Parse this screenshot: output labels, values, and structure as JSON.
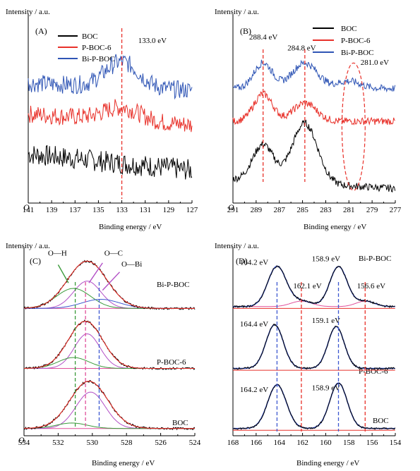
{
  "colors": {
    "black": "#000000",
    "red": "#e8312a",
    "blue": "#2f55b5",
    "green": "#3a9a3a",
    "purple": "#b24fc6",
    "baseblue": "#3d58d0",
    "pink": "#e0509a",
    "fitred": "#e8312a"
  },
  "chart_data": [
    {
      "id": "A",
      "type": "line",
      "panel_label": "(A)",
      "ylabel": "Intensity / a.u.",
      "xlabel": "Binding energy / eV",
      "xlim": [
        141,
        127
      ],
      "x_ticks": [
        "141",
        "139",
        "137",
        "135",
        "133",
        "131",
        "129",
        "127"
      ],
      "y_origin_label": "O",
      "series": [
        {
          "name": "BOC",
          "color": "black",
          "offset": 0.18,
          "amp": 0.0,
          "center": 133.0,
          "width": 1.6,
          "slope": 0.09,
          "noise": 0.06
        },
        {
          "name": "P-BOC-6",
          "color": "red",
          "offset": 0.43,
          "amp": 0.07,
          "center": 133.0,
          "width": 1.5,
          "slope": 0.06,
          "noise": 0.05
        },
        {
          "name": "Bi-P-BOC",
          "color": "blue",
          "offset": 0.62,
          "amp": 0.14,
          "center": 133.0,
          "width": 1.4,
          "slope": 0.04,
          "noise": 0.05
        }
      ],
      "ref_lines": [
        133.0
      ],
      "annotations": [
        {
          "text": "133.0 eV",
          "x": 131.6,
          "y": 0.88
        }
      ]
    },
    {
      "id": "B",
      "type": "line",
      "panel_label": "(B)",
      "ylabel": "Intensity / a.u.",
      "xlabel": "Binding energy / eV",
      "xlim": [
        291,
        277
      ],
      "x_ticks": [
        "291",
        "289",
        "287",
        "285",
        "283",
        "281",
        "279",
        "277"
      ],
      "y_origin_label": "O",
      "series": [
        {
          "name": "BOC",
          "color": "black",
          "offset": 0.08,
          "peaks": [
            [
              288.4,
              0.2,
              0.9
            ],
            [
              284.8,
              0.33,
              1.1
            ]
          ],
          "tail": 0.05,
          "noise": 0.02
        },
        {
          "name": "P-BOC-6",
          "color": "red",
          "offset": 0.45,
          "peaks": [
            [
              288.4,
              0.15,
              0.8
            ],
            [
              284.8,
              0.1,
              1.0
            ]
          ],
          "tail": 0.0,
          "noise": 0.02
        },
        {
          "name": "Bi-P-BOC",
          "color": "blue",
          "offset": 0.63,
          "peaks": [
            [
              288.4,
              0.14,
              0.8
            ],
            [
              284.8,
              0.14,
              1.1
            ],
            [
              281.0,
              0.04,
              1.0
            ]
          ],
          "tail": 0.0,
          "noise": 0.02
        }
      ],
      "ref_lines": [
        288.4,
        284.8
      ],
      "annotations": [
        {
          "text": "288.4 eV",
          "x": 289.6,
          "y": 0.9
        },
        {
          "text": "284.8 eV",
          "x": 286.3,
          "y": 0.84
        },
        {
          "text": "281.0 eV",
          "x": 280.0,
          "y": 0.76
        }
      ],
      "ellipse": {
        "cx": 280.6,
        "cy": 0.42,
        "rx": 1.0,
        "ry": 0.35
      }
    },
    {
      "id": "C",
      "type": "line",
      "panel_label": "(C)",
      "ylabel": "Intensity / a.u.",
      "xlabel": "Binding energy / eV",
      "xlim": [
        534,
        524
      ],
      "x_ticks": [
        "534",
        "532",
        "530",
        "528",
        "526",
        "524"
      ],
      "y_origin_label": "O",
      "stacks": [
        {
          "name": "Bi-P-BOC",
          "base": 0.7,
          "total": 0.26,
          "center": 530.3,
          "width": 1.15,
          "components": [
            [
              530.3,
              0.15,
              0.8,
              "purple"
            ],
            [
              531.1,
              0.11,
              1.0,
              "green"
            ],
            [
              529.5,
              0.05,
              1.1,
              "baseblue"
            ]
          ]
        },
        {
          "name": "P-BOC-6",
          "base": 0.37,
          "total": 0.26,
          "center": 530.4,
          "width": 1.0,
          "components": [
            [
              530.3,
              0.19,
              0.75,
              "purple"
            ],
            [
              531.1,
              0.06,
              0.9,
              "green"
            ]
          ]
        },
        {
          "name": "BOC",
          "base": 0.04,
          "total": 0.26,
          "center": 530.2,
          "width": 1.1,
          "components": [
            [
              530.1,
              0.2,
              0.85,
              "purple"
            ],
            [
              531.2,
              0.03,
              0.9,
              "green"
            ]
          ]
        }
      ],
      "ref_lines": [
        [
          531.0,
          "green"
        ],
        [
          530.4,
          "pink"
        ],
        [
          529.6,
          "baseblue"
        ]
      ],
      "annotations": [
        {
          "text": "O—H",
          "x": 532.6,
          "y": 0.99
        },
        {
          "text": "O—C",
          "x": 529.3,
          "y": 0.99
        },
        {
          "text": "O—Bi",
          "x": 528.3,
          "y": 0.93
        }
      ]
    },
    {
      "id": "D",
      "type": "line",
      "panel_label": "(D)",
      "ylabel": "Intensity / a.u.",
      "xlabel": "Binding energy / eV",
      "xlim": [
        168,
        154
      ],
      "x_ticks": [
        "168",
        "166",
        "164",
        "162",
        "160",
        "158",
        "156",
        "154"
      ],
      "stacks": [
        {
          "name": "Bi-P-BOC",
          "base": 0.71,
          "peaks": [
            [
              164.2,
              0.22,
              0.8
            ],
            [
              158.9,
              0.22,
              0.75
            ]
          ],
          "minor": [
            [
              162.1,
              0.03,
              0.9
            ],
            [
              156.6,
              0.03,
              0.8
            ]
          ]
        },
        {
          "name": "P-BOC-6",
          "base": 0.37,
          "peaks": [
            [
              164.4,
              0.24,
              0.75
            ],
            [
              159.1,
              0.23,
              0.7
            ]
          ],
          "minor": []
        },
        {
          "name": "BOC",
          "base": 0.04,
          "peaks": [
            [
              164.2,
              0.24,
              0.8
            ],
            [
              158.9,
              0.25,
              0.75
            ]
          ],
          "minor": []
        }
      ],
      "ref_lines": [
        [
          164.2,
          "baseblue"
        ],
        [
          158.9,
          "baseblue"
        ],
        [
          162.1,
          "red"
        ],
        [
          156.6,
          "red"
        ]
      ],
      "annotations": [
        {
          "text": "164.2 eV",
          "x": 167.4,
          "y": 0.94,
          "color": "black"
        },
        {
          "text": "158.9 eV",
          "x": 161.2,
          "y": 0.96,
          "color": "black"
        },
        {
          "text": "162.1 eV",
          "x": 162.8,
          "y": 0.81,
          "color": "red"
        },
        {
          "text": "156.6 eV",
          "x": 157.3,
          "y": 0.81,
          "color": "red"
        },
        {
          "text": "164.4 eV",
          "x": 167.4,
          "y": 0.6,
          "color": "black"
        },
        {
          "text": "159.1 eV",
          "x": 161.2,
          "y": 0.62,
          "color": "black"
        },
        {
          "text": "164.2 eV",
          "x": 167.4,
          "y": 0.24,
          "color": "black"
        },
        {
          "text": "158.9 eV",
          "x": 161.2,
          "y": 0.25,
          "color": "black"
        }
      ]
    }
  ],
  "labels": {
    "a_title": "(A)",
    "b_title": "(B)",
    "c_title": "(C)",
    "d_title": "(D)",
    "ylabel": "Intensity / a.u.",
    "xlabel": "Binding energy / eV",
    "origin": "O",
    "boc": "BOC",
    "pboc": "P-BOC-6",
    "bipboc": "Bi-P-BOC"
  }
}
